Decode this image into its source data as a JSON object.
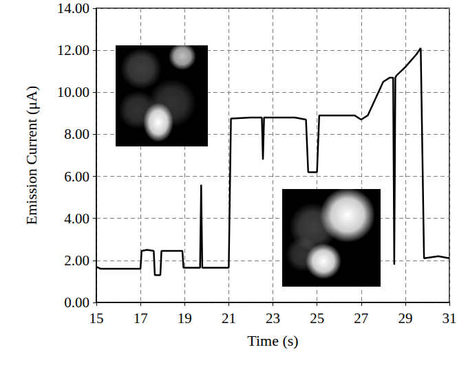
{
  "chart_data": {
    "type": "line",
    "x_label": "Time (s)",
    "y_label": "Emission Current (μA)",
    "x": [
      15.0,
      15.2,
      16.0,
      17.0,
      17.05,
      17.3,
      17.6,
      17.65,
      17.9,
      17.95,
      18.5,
      18.9,
      18.95,
      19.7,
      19.75,
      19.8,
      21.0,
      21.1,
      22.0,
      22.5,
      22.55,
      22.6,
      24.0,
      24.5,
      24.6,
      25.0,
      25.1,
      26.0,
      26.7,
      27.0,
      27.3,
      28.0,
      28.3,
      28.45,
      28.5,
      28.55,
      28.6,
      29.0,
      29.5,
      29.7,
      29.85,
      30.5,
      31.0
    ],
    "values": [
      1.7,
      1.6,
      1.6,
      1.6,
      2.45,
      2.5,
      2.45,
      1.3,
      1.3,
      2.45,
      2.45,
      2.45,
      1.65,
      1.65,
      5.6,
      1.65,
      1.65,
      8.75,
      8.8,
      8.8,
      6.8,
      8.8,
      8.8,
      8.7,
      6.2,
      6.2,
      8.9,
      8.9,
      8.9,
      8.7,
      8.9,
      10.5,
      10.7,
      10.7,
      1.8,
      10.7,
      10.8,
      11.2,
      11.8,
      12.1,
      2.1,
      2.2,
      2.1
    ],
    "color": "#000000",
    "xlim": [
      15,
      31
    ],
    "ylim": [
      0,
      14
    ],
    "xticks": [
      15,
      17,
      19,
      21,
      23,
      25,
      27,
      29,
      31
    ],
    "yticks": [
      {
        "value": 0,
        "label": "0.00"
      },
      {
        "value": 2,
        "label": "2.00"
      },
      {
        "value": 4,
        "label": "4.00"
      },
      {
        "value": 6,
        "label": "6.00"
      },
      {
        "value": 8,
        "label": "8.00"
      },
      {
        "value": 10,
        "label": "10.00"
      },
      {
        "value": 12,
        "label": "12.00"
      },
      {
        "value": 14,
        "label": "14.00"
      }
    ],
    "grid": true
  }
}
